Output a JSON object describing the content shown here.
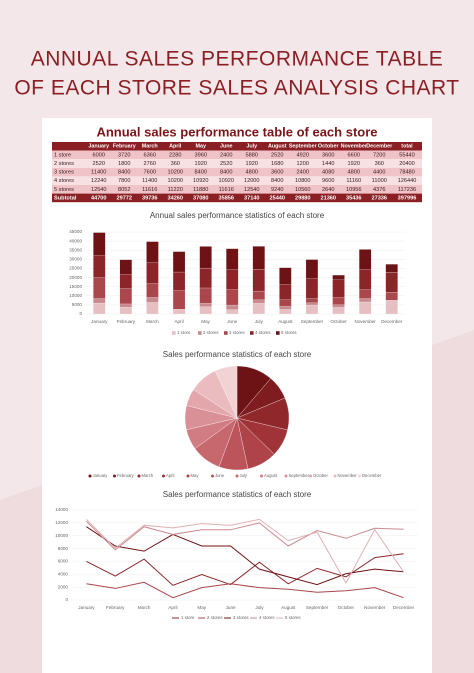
{
  "header": {
    "title_lines": [
      "ANNUAL SALES PERFORMANCE TABLE",
      "OF EACH STORE SALES ANALYSIS CHART"
    ]
  },
  "table": {
    "title": "Annual sales performance table of each store",
    "columns": [
      "January",
      "February",
      "March",
      "April",
      "May",
      "June",
      "July",
      "August",
      "September",
      "October",
      "November",
      "December",
      "total"
    ],
    "rows": [
      {
        "label": "1 store",
        "values": [
          6000,
          3720,
          6360,
          2280,
          3960,
          2400,
          5880,
          2520,
          4920,
          3600,
          6600,
          7200
        ],
        "total": 55440
      },
      {
        "label": "2 stores",
        "values": [
          2520,
          1800,
          2760,
          360,
          1920,
          2520,
          1920,
          1680,
          1200,
          1440,
          1920,
          360
        ],
        "total": 20400
      },
      {
        "label": "3 stores",
        "values": [
          11400,
          8400,
          7600,
          10200,
          8400,
          8400,
          4800,
          3600,
          2400,
          4080,
          4800,
          4400
        ],
        "total": 78480
      },
      {
        "label": "4 stores",
        "values": [
          12240,
          7800,
          11400,
          10200,
          10920,
          10920,
          12000,
          8400,
          10800,
          9600,
          11160,
          11000
        ],
        "total": 126440
      },
      {
        "label": "5 stores",
        "values": [
          12540,
          8052,
          11616,
          11220,
          11880,
          11616,
          12540,
          9240,
          10560,
          2640,
          10956,
          4376
        ],
        "total": 117236
      }
    ],
    "subtotal": {
      "label": "Subtotal",
      "values": [
        44700,
        29772,
        39736,
        34260,
        37080,
        35856,
        37140,
        25440,
        29880,
        21360,
        35436,
        27336
      ],
      "total": 397996
    }
  },
  "charts": [
    {
      "type": "bar",
      "title": "Annual sales performance statistics of each store",
      "ylim": [
        0,
        45000
      ],
      "yticks": [
        0,
        5000,
        10000,
        15000,
        20000,
        25000,
        30000,
        35000,
        40000,
        45000
      ],
      "colors": [
        "#e6bfc2",
        "#c98a8f",
        "#a9474d",
        "#8c2529",
        "#6d1316"
      ]
    },
    {
      "type": "pie",
      "title": "Sales performance statistics of each store",
      "colors": [
        "#6d1316",
        "#7e1c20",
        "#8f272b",
        "#9f3338",
        "#ae4349",
        "#bb555b",
        "#c6686e",
        "#d07c82",
        "#d99197",
        "#e2a6ab",
        "#eabcc0",
        "#f1d2d5"
      ]
    },
    {
      "type": "line",
      "title": "Sales performance statistics of each store",
      "ylim": [
        0,
        14000
      ],
      "yticks": [
        0,
        2000,
        4000,
        6000,
        8000,
        10000,
        12000,
        14000
      ],
      "colors": [
        "#8c2529",
        "#a9474d",
        "#6d1316",
        "#c98a8f",
        "#e0b0b4"
      ]
    }
  ]
}
